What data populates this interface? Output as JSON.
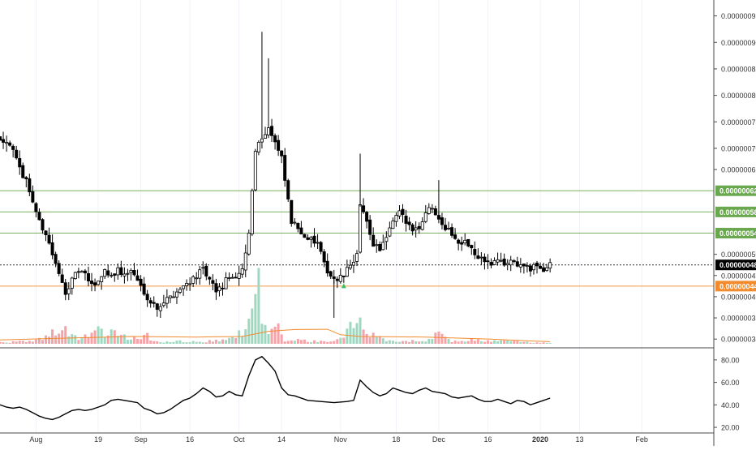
{
  "chart_data": {
    "type": "candlestick",
    "title": "",
    "price_axis": {
      "ticks": [
        "0.00000095",
        "0.00000090",
        "0.00000085",
        "0.00000080",
        "0.00000075",
        "0.00000070",
        "0.00000066",
        "0.00000050",
        "0.00000046",
        "0.00000042",
        "0.00000038",
        "0.00000034"
      ],
      "tick_values": [
        95,
        90,
        85,
        80,
        75,
        70,
        66,
        50,
        46,
        42,
        38,
        34
      ],
      "range": [
        32.5,
        98
      ],
      "scale": "1e-8"
    },
    "time_axis": {
      "ticks": [
        {
          "label": "Aug",
          "day": 11
        },
        {
          "label": "19",
          "day": 30
        },
        {
          "label": "Sep",
          "day": 43
        },
        {
          "label": "16",
          "day": 58
        },
        {
          "label": "Oct",
          "day": 73
        },
        {
          "label": "14",
          "day": 86
        },
        {
          "label": "Nov",
          "day": 104
        },
        {
          "label": "18",
          "day": 121
        },
        {
          "label": "Dec",
          "day": 134
        },
        {
          "label": "16",
          "day": 149
        },
        {
          "label": "2020",
          "day": 165
        },
        {
          "label": "13",
          "day": 177
        },
        {
          "label": "Feb",
          "day": 196
        }
      ],
      "day_range": [
        0,
        218
      ]
    },
    "levels": [
      {
        "label": "0.00000062",
        "value": 62,
        "color": "#6aa84f"
      },
      {
        "label": "0.00000058",
        "value": 58,
        "color": "#6aa84f"
      },
      {
        "label": "0.00000054",
        "value": 54,
        "color": "#6aa84f"
      },
      {
        "label": "0.00000048",
        "value": 48,
        "color": "#000000"
      },
      {
        "label": "0.00000044",
        "value": 44,
        "color": "#f28b2e"
      }
    ],
    "marker": {
      "day": 105,
      "value": 45,
      "color": "#3fbf5f"
    },
    "ohlc_points": [
      [
        0,
        72
      ],
      [
        3,
        71
      ],
      [
        6,
        66
      ],
      [
        8,
        64
      ],
      [
        10,
        60
      ],
      [
        12,
        56
      ],
      [
        14,
        54
      ],
      [
        16,
        50
      ],
      [
        18,
        46
      ],
      [
        20,
        43
      ],
      [
        22,
        45
      ],
      [
        24,
        47
      ],
      [
        26,
        46
      ],
      [
        28,
        44
      ],
      [
        30,
        45
      ],
      [
        32,
        47
      ],
      [
        34,
        46
      ],
      [
        36,
        47
      ],
      [
        38,
        46
      ],
      [
        40,
        47
      ],
      [
        42,
        45
      ],
      [
        44,
        43
      ],
      [
        46,
        41
      ],
      [
        48,
        40
      ],
      [
        50,
        41
      ],
      [
        52,
        42
      ],
      [
        54,
        43
      ],
      [
        56,
        44
      ],
      [
        58,
        45
      ],
      [
        60,
        46
      ],
      [
        62,
        47
      ],
      [
        64,
        45
      ],
      [
        66,
        43
      ],
      [
        68,
        44
      ],
      [
        70,
        46
      ],
      [
        72,
        45
      ],
      [
        74,
        47
      ],
      [
        76,
        54
      ],
      [
        78,
        70
      ],
      [
        80,
        72
      ],
      [
        82,
        74
      ],
      [
        84,
        71
      ],
      [
        86,
        68
      ],
      [
        88,
        60
      ],
      [
        89,
        56
      ],
      [
        91,
        55
      ],
      [
        94,
        53
      ],
      [
        97,
        52
      ],
      [
        99,
        48
      ],
      [
        101,
        46
      ],
      [
        103,
        45
      ],
      [
        105,
        46
      ],
      [
        107,
        48
      ],
      [
        109,
        50
      ],
      [
        110,
        59
      ],
      [
        112,
        56
      ],
      [
        114,
        52
      ],
      [
        116,
        51
      ],
      [
        118,
        53
      ],
      [
        120,
        56
      ],
      [
        122,
        58
      ],
      [
        124,
        56
      ],
      [
        126,
        55
      ],
      [
        128,
        55
      ],
      [
        130,
        58
      ],
      [
        132,
        59
      ],
      [
        134,
        57
      ],
      [
        136,
        55
      ],
      [
        138,
        54
      ],
      [
        140,
        52
      ],
      [
        142,
        53
      ],
      [
        144,
        51
      ],
      [
        146,
        49
      ],
      [
        148,
        49
      ],
      [
        150,
        48
      ],
      [
        152,
        49
      ],
      [
        154,
        48
      ],
      [
        156,
        49
      ],
      [
        158,
        48
      ],
      [
        160,
        48
      ],
      [
        162,
        47
      ],
      [
        164,
        48
      ],
      [
        166,
        47
      ],
      [
        168,
        48
      ]
    ],
    "volume_points": [
      [
        0,
        0.5
      ],
      [
        10,
        1
      ],
      [
        20,
        6
      ],
      [
        25,
        2
      ],
      [
        30,
        5
      ],
      [
        34,
        4
      ],
      [
        40,
        2
      ],
      [
        45,
        3
      ],
      [
        48,
        0.8
      ],
      [
        55,
        1
      ],
      [
        60,
        1
      ],
      [
        65,
        1
      ],
      [
        70,
        2
      ],
      [
        74,
        5
      ],
      [
        76,
        9
      ],
      [
        79,
        20
      ],
      [
        82,
        5
      ],
      [
        85,
        6
      ],
      [
        87,
        1
      ],
      [
        90,
        2
      ],
      [
        95,
        1
      ],
      [
        100,
        1
      ],
      [
        104,
        2
      ],
      [
        107,
        6
      ],
      [
        109,
        10
      ],
      [
        111,
        4
      ],
      [
        114,
        3
      ],
      [
        118,
        1
      ],
      [
        122,
        1
      ],
      [
        128,
        1
      ],
      [
        132,
        2
      ],
      [
        135,
        6
      ],
      [
        138,
        1
      ],
      [
        142,
        1
      ],
      [
        146,
        2
      ],
      [
        150,
        1
      ],
      [
        155,
        1
      ],
      [
        160,
        0.6
      ],
      [
        165,
        0.5
      ],
      [
        168,
        0.5
      ]
    ],
    "volume_ma": [
      [
        0,
        1.5
      ],
      [
        20,
        2.2
      ],
      [
        40,
        2.8
      ],
      [
        60,
        2.6
      ],
      [
        74,
        2.8
      ],
      [
        82,
        4.8
      ],
      [
        90,
        5.5
      ],
      [
        100,
        5.6
      ],
      [
        104,
        3.5
      ],
      [
        110,
        2.8
      ],
      [
        130,
        2.6
      ],
      [
        140,
        2.2
      ],
      [
        150,
        1.8
      ],
      [
        160,
        1.2
      ],
      [
        168,
        0.8
      ]
    ],
    "oscillator": {
      "ticks": [
        "80.00",
        "60.00",
        "40.00",
        "20.00"
      ],
      "tick_values": [
        80,
        60,
        40,
        20
      ],
      "range": [
        15,
        90
      ],
      "values": [
        [
          0,
          40
        ],
        [
          2,
          38
        ],
        [
          4,
          37
        ],
        [
          6,
          38
        ],
        [
          8,
          36
        ],
        [
          10,
          33
        ],
        [
          12,
          30
        ],
        [
          14,
          28
        ],
        [
          16,
          27
        ],
        [
          18,
          29
        ],
        [
          20,
          32
        ],
        [
          22,
          35
        ],
        [
          24,
          36
        ],
        [
          26,
          35
        ],
        [
          28,
          36
        ],
        [
          30,
          38
        ],
        [
          32,
          40
        ],
        [
          34,
          44
        ],
        [
          36,
          45
        ],
        [
          38,
          44
        ],
        [
          40,
          43
        ],
        [
          42,
          42
        ],
        [
          44,
          37
        ],
        [
          46,
          35
        ],
        [
          48,
          32
        ],
        [
          50,
          33
        ],
        [
          52,
          36
        ],
        [
          54,
          40
        ],
        [
          56,
          44
        ],
        [
          58,
          46
        ],
        [
          60,
          50
        ],
        [
          62,
          55
        ],
        [
          64,
          52
        ],
        [
          66,
          47
        ],
        [
          68,
          48
        ],
        [
          70,
          52
        ],
        [
          72,
          49
        ],
        [
          74,
          48
        ],
        [
          76,
          66
        ],
        [
          78,
          80
        ],
        [
          80,
          83
        ],
        [
          82,
          77
        ],
        [
          84,
          70
        ],
        [
          86,
          55
        ],
        [
          88,
          49
        ],
        [
          90,
          48
        ],
        [
          94,
          44
        ],
        [
          98,
          43
        ],
        [
          102,
          42
        ],
        [
          106,
          43
        ],
        [
          108,
          44
        ],
        [
          110,
          62
        ],
        [
          112,
          56
        ],
        [
          114,
          51
        ],
        [
          116,
          48
        ],
        [
          118,
          50
        ],
        [
          120,
          55
        ],
        [
          122,
          53
        ],
        [
          124,
          51
        ],
        [
          126,
          50
        ],
        [
          128,
          53
        ],
        [
          130,
          55
        ],
        [
          132,
          52
        ],
        [
          134,
          51
        ],
        [
          136,
          50
        ],
        [
          138,
          47
        ],
        [
          140,
          46
        ],
        [
          142,
          47
        ],
        [
          144,
          48
        ],
        [
          146,
          45
        ],
        [
          148,
          43
        ],
        [
          150,
          43
        ],
        [
          152,
          45
        ],
        [
          154,
          43
        ],
        [
          156,
          41
        ],
        [
          158,
          44
        ],
        [
          160,
          43
        ],
        [
          162,
          40
        ],
        [
          164,
          42
        ],
        [
          166,
          44
        ],
        [
          168,
          46
        ]
      ]
    }
  }
}
